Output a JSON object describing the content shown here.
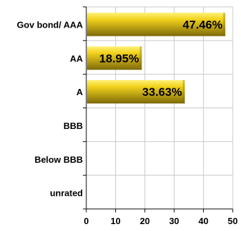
{
  "chart_data": {
    "type": "bar",
    "orientation": "horizontal",
    "categories": [
      "Gov bond/ AAA",
      "AA",
      "A",
      "BBB",
      "Below BBB",
      "unrated"
    ],
    "values": [
      47.46,
      18.95,
      33.63,
      0,
      0,
      0
    ],
    "data_labels": [
      "47.46%",
      "18.95%",
      "33.63%",
      "",
      "",
      ""
    ],
    "xlim": [
      0,
      50
    ],
    "xticks": [
      0,
      10,
      20,
      30,
      40,
      50
    ],
    "grid": true,
    "legend": "none",
    "bar_color_light": "#fff27a",
    "bar_color_main": "#f2d21c",
    "bar_color_dark": "#7d6a0a"
  }
}
